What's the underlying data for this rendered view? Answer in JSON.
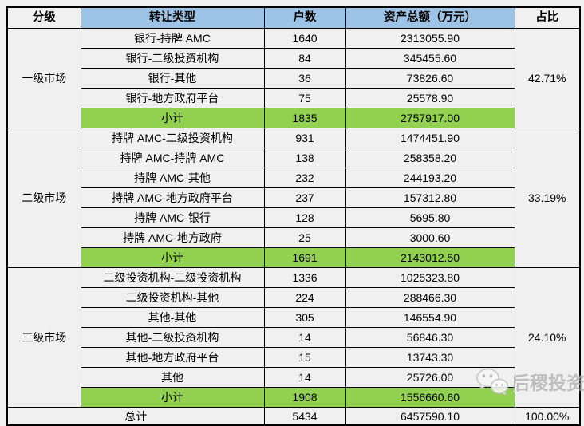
{
  "table": {
    "headers": {
      "level": "分级",
      "type": "转让类型",
      "count": "户数",
      "assets": "资产总额（万元）",
      "share": "占比"
    },
    "sections": [
      {
        "level": "一级市场",
        "share": "42.71%",
        "rows": [
          {
            "type": "银行-持牌 AMC",
            "count": "1640",
            "assets": "2313055.90"
          },
          {
            "type": "银行-二级投资机构",
            "count": "84",
            "assets": "345455.60"
          },
          {
            "type": "银行-其他",
            "count": "36",
            "assets": "73826.60"
          },
          {
            "type": "银行-地方政府平台",
            "count": "75",
            "assets": "25578.90"
          }
        ],
        "subtotal": {
          "label": "小计",
          "count": "1835",
          "assets": "2757917.00"
        }
      },
      {
        "level": "二级市场",
        "share": "33.19%",
        "rows": [
          {
            "type": "持牌 AMC-二级投资机构",
            "count": "931",
            "assets": "1474451.90"
          },
          {
            "type": "持牌 AMC-持牌 AMC",
            "count": "138",
            "assets": "258358.20"
          },
          {
            "type": "持牌 AMC-其他",
            "count": "232",
            "assets": "244193.20"
          },
          {
            "type": "持牌 AMC-地方政府平台",
            "count": "237",
            "assets": "157312.80"
          },
          {
            "type": "持牌 AMC-银行",
            "count": "128",
            "assets": "5695.80"
          },
          {
            "type": "持牌 AMC-地方政府",
            "count": "25",
            "assets": "3000.60"
          }
        ],
        "subtotal": {
          "label": "小计",
          "count": "1691",
          "assets": "2143012.50"
        }
      },
      {
        "level": "三级市场",
        "share": "24.10%",
        "rows": [
          {
            "type": "二级投资机构-二级投资机构",
            "count": "1336",
            "assets": "1025323.80"
          },
          {
            "type": "二级投资机构-其他",
            "count": "224",
            "assets": "288466.30"
          },
          {
            "type": "其他-其他",
            "count": "305",
            "assets": "146554.90"
          },
          {
            "type": "其他-二级投资机构",
            "count": "14",
            "assets": "56846.30"
          },
          {
            "type": "其他-地方政府平台",
            "count": "15",
            "assets": "13743.30"
          },
          {
            "type": "其他",
            "count": "14",
            "assets": "25726.00"
          }
        ],
        "subtotal": {
          "label": "小计",
          "count": "1908",
          "assets": "1556660.60"
        }
      }
    ],
    "total": {
      "label": "总计",
      "count": "5434",
      "assets": "6457590.10",
      "share": "100.00%"
    }
  },
  "watermark": {
    "icon": "wechat-icon",
    "text": "后稷投资"
  },
  "colors": {
    "header_blue": "#9dc3e6",
    "subtotal_green": "#92d050",
    "border": "#000000",
    "background": "#f0f0f0"
  },
  "chart_data": {
    "type": "table",
    "title": "",
    "columns": [
      "分级",
      "转让类型",
      "户数",
      "资产总额（万元）",
      "占比"
    ],
    "rows": [
      [
        "一级市场",
        "银行-持牌 AMC",
        "1640",
        "2313055.90",
        "42.71%"
      ],
      [
        "一级市场",
        "银行-二级投资机构",
        "84",
        "345455.60",
        "42.71%"
      ],
      [
        "一级市场",
        "银行-其他",
        "36",
        "73826.60",
        "42.71%"
      ],
      [
        "一级市场",
        "银行-地方政府平台",
        "75",
        "25578.90",
        "42.71%"
      ],
      [
        "一级市场",
        "小计",
        "1835",
        "2757917.00",
        "42.71%"
      ],
      [
        "二级市场",
        "持牌 AMC-二级投资机构",
        "931",
        "1474451.90",
        "33.19%"
      ],
      [
        "二级市场",
        "持牌 AMC-持牌 AMC",
        "138",
        "258358.20",
        "33.19%"
      ],
      [
        "二级市场",
        "持牌 AMC-其他",
        "232",
        "244193.20",
        "33.19%"
      ],
      [
        "二级市场",
        "持牌 AMC-地方政府平台",
        "237",
        "157312.80",
        "33.19%"
      ],
      [
        "二级市场",
        "持牌 AMC-银行",
        "128",
        "5695.80",
        "33.19%"
      ],
      [
        "二级市场",
        "持牌 AMC-地方政府",
        "25",
        "3000.60",
        "33.19%"
      ],
      [
        "二级市场",
        "小计",
        "1691",
        "2143012.50",
        "33.19%"
      ],
      [
        "三级市场",
        "二级投资机构-二级投资机构",
        "1336",
        "1025323.80",
        "24.10%"
      ],
      [
        "三级市场",
        "二级投资机构-其他",
        "224",
        "288466.30",
        "24.10%"
      ],
      [
        "三级市场",
        "其他-其他",
        "305",
        "146554.90",
        "24.10%"
      ],
      [
        "三级市场",
        "其他-二级投资机构",
        "14",
        "56846.30",
        "24.10%"
      ],
      [
        "三级市场",
        "其他-地方政府平台",
        "15",
        "13743.30",
        "24.10%"
      ],
      [
        "三级市场",
        "其他",
        "14",
        "25726.00",
        "24.10%"
      ],
      [
        "三级市场",
        "小计",
        "1908",
        "1556660.60",
        "24.10%"
      ],
      [
        "总计",
        "总计",
        "5434",
        "6457590.10",
        "100.00%"
      ]
    ]
  }
}
